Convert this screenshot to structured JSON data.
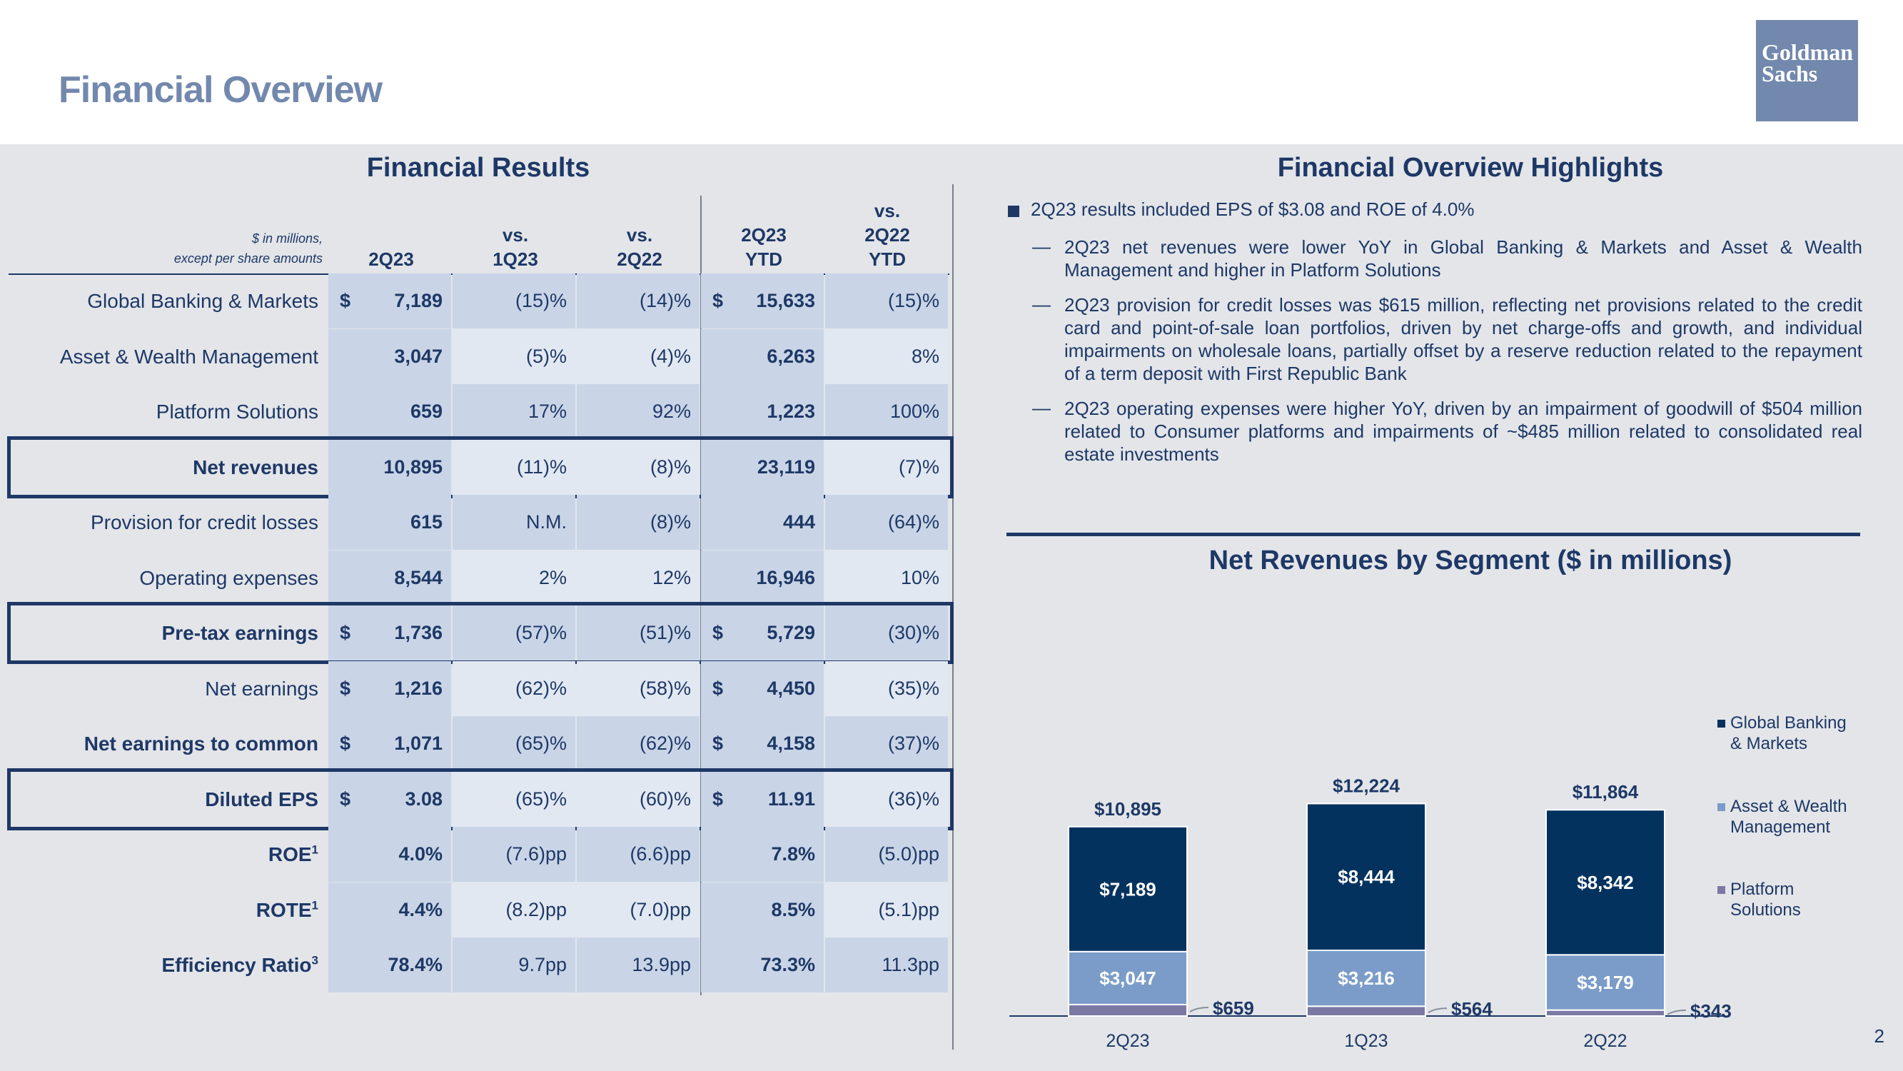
{
  "page": {
    "title": "Financial Overview",
    "logo_line1": "Goldman",
    "logo_line2": "Sachs",
    "page_number": "2"
  },
  "colors": {
    "gbm": "#04325f",
    "awm": "#7b9cc8",
    "ps": "#7b79a4",
    "title": "#7388ad",
    "navy": "#1e3866"
  },
  "table": {
    "title": "Financial Results",
    "unit_note_line1": "$ in millions,",
    "unit_note_line2": "except per share amounts",
    "headers": [
      {
        "line1": "",
        "line2": "",
        "line3": "2Q23"
      },
      {
        "line1": "",
        "line2": "vs.",
        "line3": "1Q23"
      },
      {
        "line1": "",
        "line2": "vs.",
        "line3": "2Q22"
      },
      {
        "line1": "",
        "line2": "2Q23",
        "line3": "YTD"
      },
      {
        "line1": "vs.",
        "line2": "2Q22",
        "line3": "YTD"
      }
    ],
    "rows": [
      {
        "label": "Global Banking & Markets",
        "sup": "",
        "bold": false,
        "highlight": false,
        "dollar": true,
        "values": [
          "7,189",
          "(15)%",
          "(14)%",
          "15,633",
          "(15)%"
        ]
      },
      {
        "label": "Asset & Wealth Management",
        "sup": "",
        "bold": false,
        "highlight": false,
        "dollar": false,
        "values": [
          "3,047",
          "(5)%",
          "(4)%",
          "6,263",
          "8%"
        ]
      },
      {
        "label": "Platform Solutions",
        "sup": "",
        "bold": false,
        "highlight": false,
        "dollar": false,
        "values": [
          "659",
          "17%",
          "92%",
          "1,223",
          "100%"
        ]
      },
      {
        "label": "Net revenues",
        "sup": "",
        "bold": true,
        "highlight": true,
        "dollar": false,
        "values": [
          "10,895",
          "(11)%",
          "(8)%",
          "23,119",
          "(7)%"
        ]
      },
      {
        "label": "Provision for credit losses",
        "sup": "",
        "bold": false,
        "highlight": false,
        "dollar": false,
        "values": [
          "615",
          "N.M.",
          "(8)%",
          "444",
          "(64)%"
        ]
      },
      {
        "label": "Operating expenses",
        "sup": "",
        "bold": false,
        "highlight": false,
        "dollar": false,
        "values": [
          "8,544",
          "2%",
          "12%",
          "16,946",
          "10%"
        ]
      },
      {
        "label": "Pre-tax earnings",
        "sup": "",
        "bold": true,
        "highlight": true,
        "dollar": true,
        "values": [
          "1,736",
          "(57)%",
          "(51)%",
          "5,729",
          "(30)%"
        ]
      },
      {
        "label": "Net earnings",
        "sup": "",
        "bold": false,
        "highlight": false,
        "dollar": true,
        "values": [
          "1,216",
          "(62)%",
          "(58)%",
          "4,450",
          "(35)%"
        ]
      },
      {
        "label": "Net earnings to common",
        "sup": "",
        "bold": true,
        "highlight": false,
        "dollar": true,
        "values": [
          "1,071",
          "(65)%",
          "(62)%",
          "4,158",
          "(37)%"
        ]
      },
      {
        "label": "Diluted EPS",
        "sup": "",
        "bold": true,
        "highlight": true,
        "dollar": true,
        "values": [
          "3.08",
          "(65)%",
          "(60)%",
          "11.91",
          "(36)%"
        ]
      },
      {
        "label": "ROE",
        "sup": "1",
        "bold": true,
        "highlight": false,
        "dollar": false,
        "values": [
          "4.0%",
          "(7.6)pp",
          "(6.6)pp",
          "7.8%",
          "(5.0)pp"
        ]
      },
      {
        "label": "ROTE",
        "sup": "1",
        "bold": true,
        "highlight": false,
        "dollar": false,
        "values": [
          "4.4%",
          "(8.2)pp",
          "(7.0)pp",
          "8.5%",
          "(5.1)pp"
        ]
      },
      {
        "label": "Efficiency Ratio",
        "sup": "3",
        "bold": true,
        "highlight": false,
        "dollar": false,
        "values": [
          "78.4%",
          "9.7pp",
          "13.9pp",
          "73.3%",
          "11.3pp"
        ]
      }
    ]
  },
  "highlights": {
    "title": "Financial Overview Highlights",
    "main_bullet": "2Q23 results included EPS of $3.08 and ROE of 4.0%",
    "dash": "—",
    "sub_bullets": [
      "2Q23 net revenues were lower YoY in Global Banking & Markets and Asset & Wealth Management and higher in Platform Solutions",
      "2Q23 provision for credit losses was $615 million, reflecting net provisions related to the credit card and point-of-sale loan portfolios, driven by net charge-offs and growth, and individual impairments on wholesale loans, partially offset by a reserve reduction related to the repayment of a term deposit with First Republic Bank",
      "2Q23 operating expenses were higher YoY, driven by an impairment of goodwill of $504 million related to Consumer platforms and impairments of ~$485 million related to consolidated real estate investments"
    ]
  },
  "chart_data": {
    "type": "bar",
    "stacked": true,
    "title": "Net Revenues by Segment ($ in millions)",
    "categories": [
      "2Q23",
      "1Q23",
      "2Q22"
    ],
    "series": [
      {
        "name": "Platform Solutions",
        "values": [
          659,
          564,
          343
        ],
        "labels": [
          "$659",
          "$564",
          "$343"
        ]
      },
      {
        "name": "Asset & Wealth Management",
        "values": [
          3047,
          3216,
          3179
        ],
        "labels": [
          "$3,047",
          "$3,216",
          "$3,179"
        ]
      },
      {
        "name": "Global Banking & Markets",
        "values": [
          7189,
          8444,
          8342
        ],
        "labels": [
          "$7,189",
          "$8,444",
          "$8,342"
        ]
      }
    ],
    "totals": [
      10895,
      12224,
      11864
    ],
    "total_labels": [
      "$10,895",
      "$12,224",
      "$11,864"
    ],
    "legend": [
      {
        "line1": "Global Banking",
        "line2": "& Markets"
      },
      {
        "line1": "Asset & Wealth",
        "line2": "Management"
      },
      {
        "line1": "Platform",
        "line2": "Solutions"
      }
    ],
    "legend_position": "right",
    "ylim": [
      0,
      13000
    ]
  }
}
